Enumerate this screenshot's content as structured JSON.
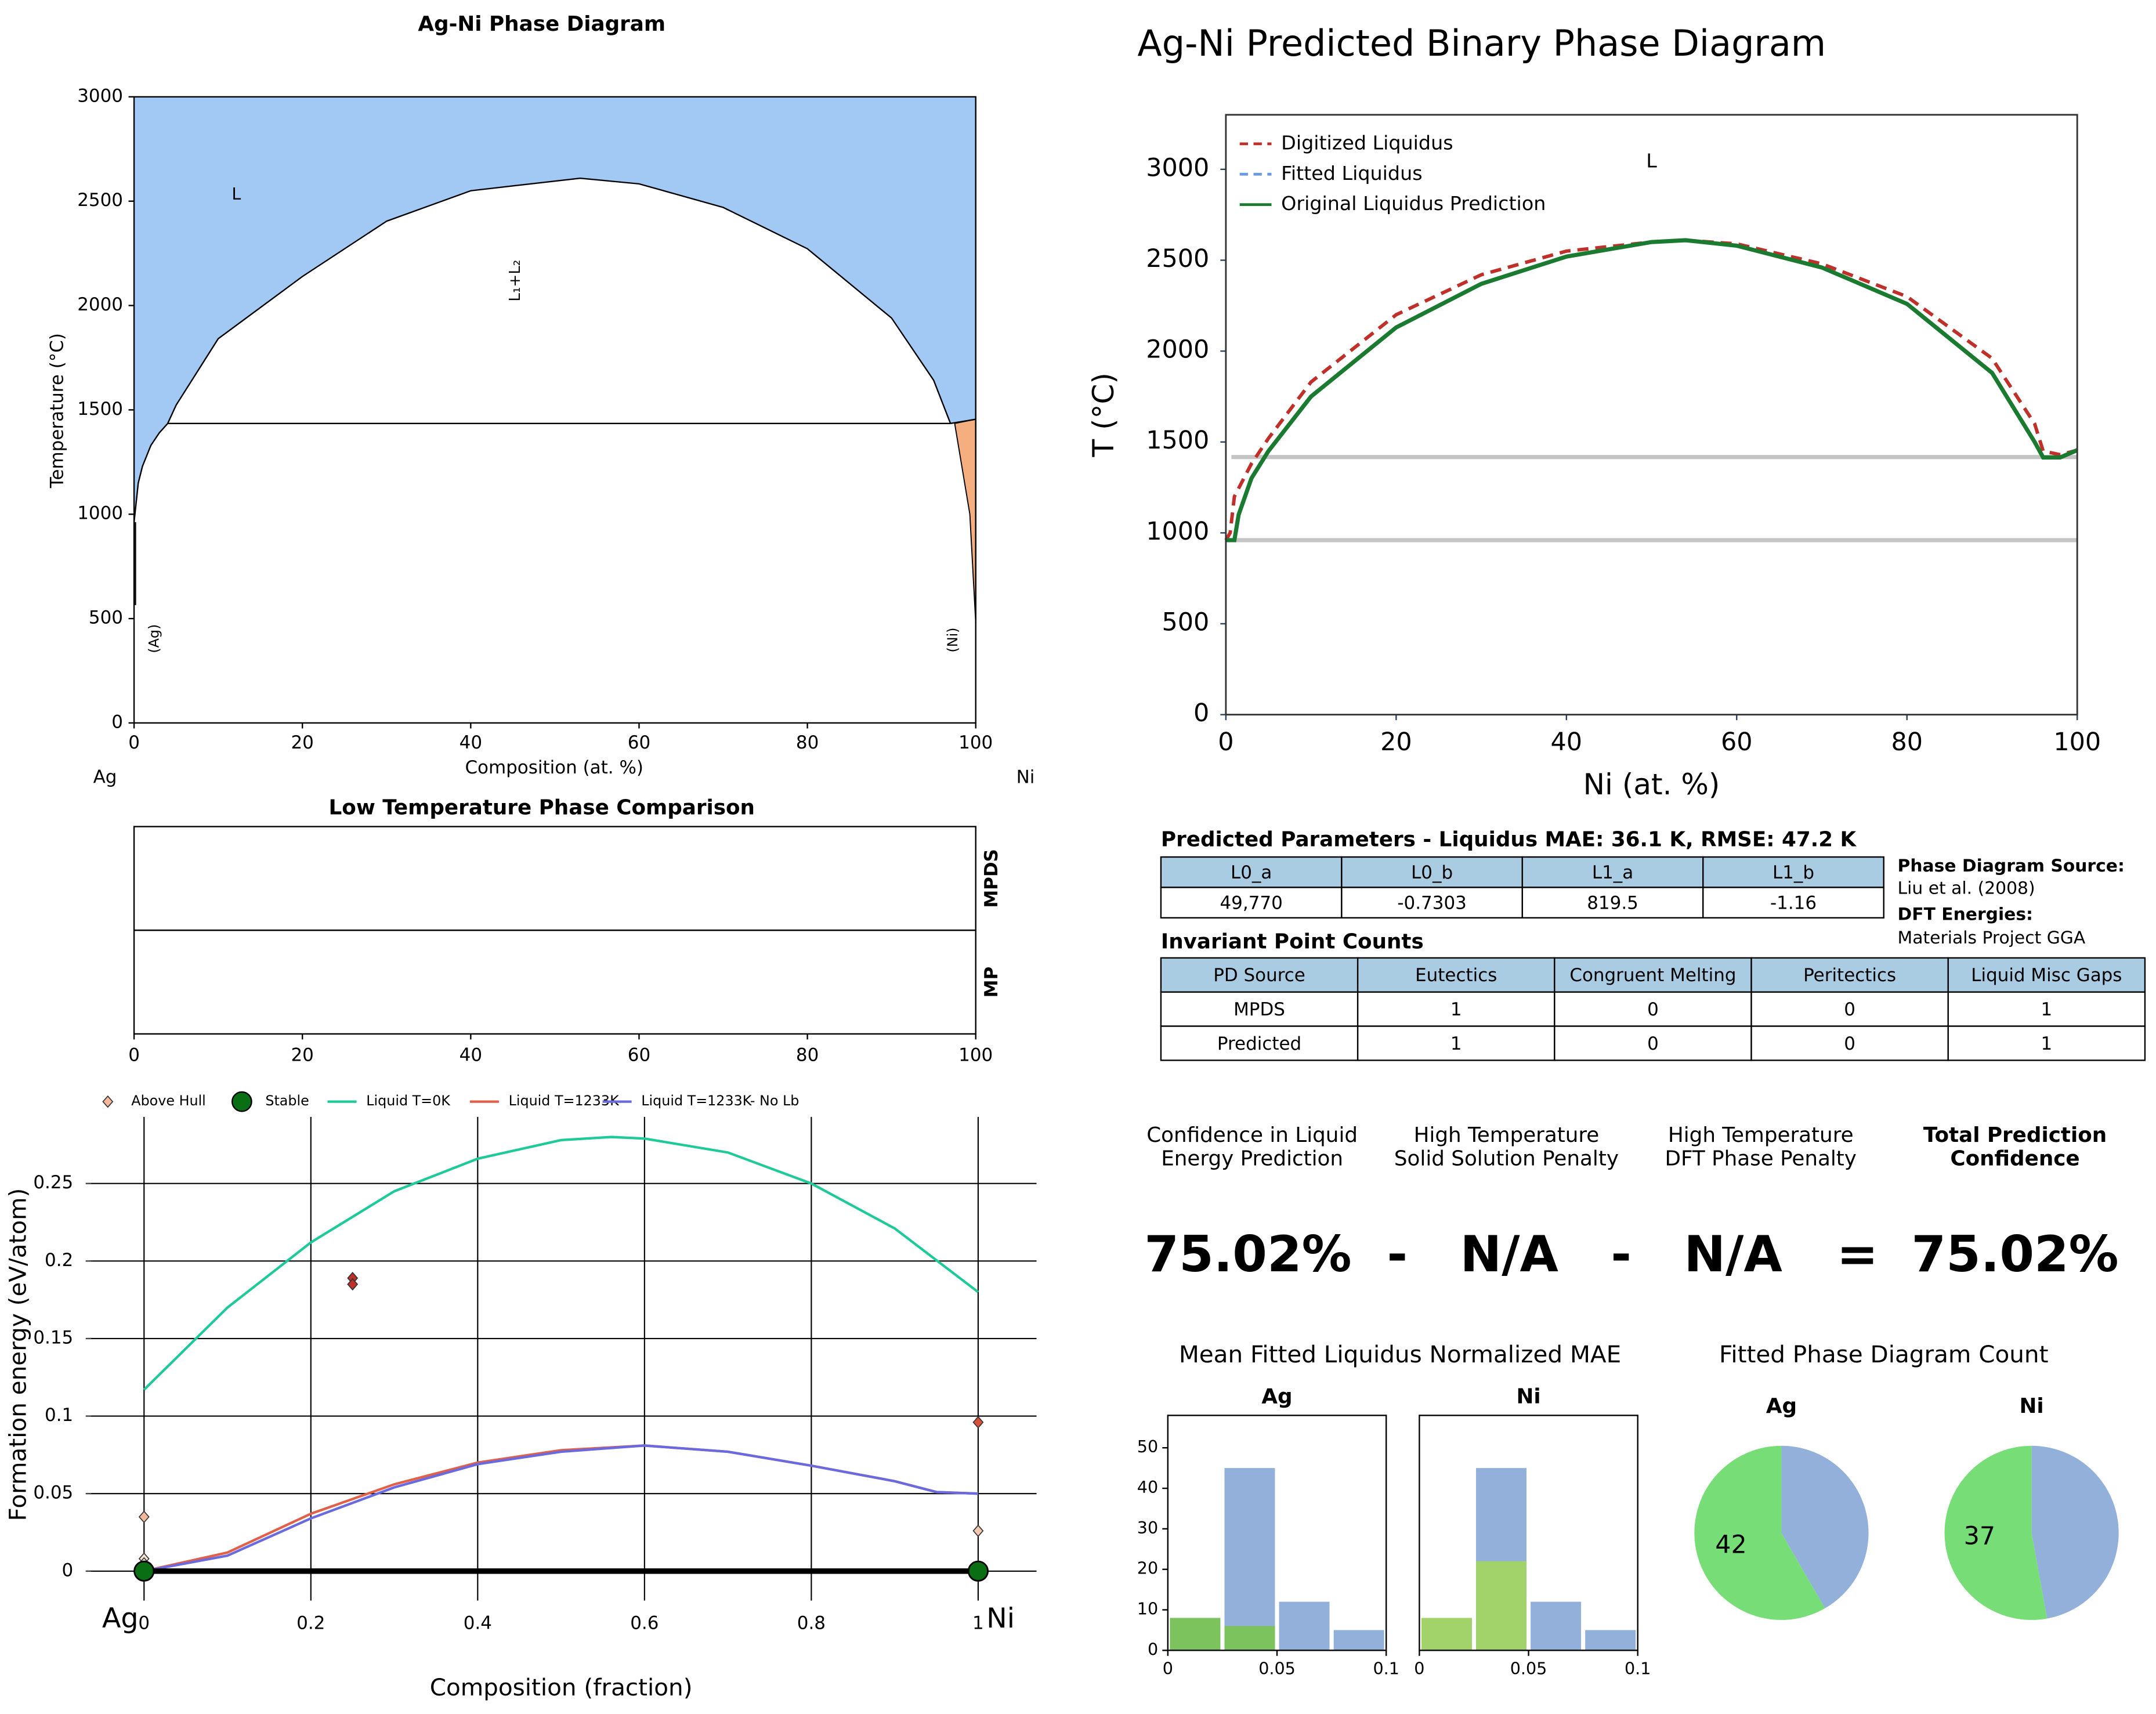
{
  "chart_data": [
    {
      "type": "phase",
      "title": "Ag-Ni Phase Diagram",
      "xlabel": "Composition (at. %)",
      "ylabel": "Temperature (°C)",
      "xlim": [
        0,
        100
      ],
      "ylim": [
        0,
        3000
      ],
      "xticks": [
        0,
        20,
        40,
        60,
        80,
        100
      ],
      "yticks": [
        0,
        500,
        1000,
        1500,
        2000,
        2500,
        3000
      ],
      "end_labels": [
        "Ag",
        "Ni"
      ],
      "annotations": [
        "L",
        "L₁+L₂",
        "(Ag)",
        "(Ni)"
      ],
      "liquid_color": "#a1c9f4",
      "solid_color": "#f5ae80",
      "dome": {
        "x": [
          4,
          5,
          10,
          20,
          30,
          40,
          53,
          60,
          70,
          80,
          90,
          95,
          97
        ],
        "y": [
          1435,
          1523,
          1841,
          2139,
          2404,
          2550,
          2610,
          2583,
          2470,
          2272,
          1940,
          1642,
          1435
        ]
      },
      "ag_liquidus": {
        "x": [
          0,
          0.5,
          1,
          2,
          3,
          4
        ],
        "y": [
          962,
          1150,
          1230,
          1330,
          1390,
          1435
        ]
      },
      "ni_liquidus": {
        "x": [
          97,
          100
        ],
        "y": [
          1435,
          1455
        ]
      },
      "monotectic": {
        "x": [
          4,
          97
        ],
        "y": [
          1435,
          1435
        ]
      },
      "ni_solid": {
        "x": [
          97.5,
          100,
          100,
          99.3
        ],
        "y": [
          1435,
          1455,
          480,
          1000
        ]
      }
    },
    {
      "type": "bands",
      "title": "Low Temperature Phase Comparison",
      "xlim": [
        0,
        100
      ],
      "xticks": [
        0,
        20,
        40,
        60,
        80,
        100
      ],
      "rows": [
        "MPDS",
        "MP"
      ]
    },
    {
      "type": "hull",
      "xlabel": "Composition (fraction)",
      "ylabel": "Formation energy (eV/atom)",
      "xlim": [
        -0.065,
        1.07
      ],
      "ylim": [
        -0.019,
        0.293
      ],
      "xticks": [
        0,
        0.2,
        0.4,
        0.6,
        0.8,
        1
      ],
      "yticks": [
        0,
        0.05,
        0.1,
        0.15,
        0.2,
        0.25
      ],
      "grid": true,
      "end_labels": [
        "Ag",
        "Ni"
      ],
      "series": [
        {
          "name": "Above Hull",
          "style": "diamond",
          "color": "#f4b89a",
          "x": [
            0,
            0,
            0,
            0.25,
            0.25,
            1,
            1
          ],
          "y": [
            0.035,
            0.008,
            0.005,
            0.189,
            0.185,
            0.096,
            0.026
          ],
          "colors": [
            "#f4b89a",
            "#f8e0d0",
            "#f8f0ea",
            "#c0302a",
            "#c0302a",
            "#d9503a",
            "#f4c8b0"
          ]
        },
        {
          "name": "Stable",
          "style": "circle",
          "color": "#0a6e14",
          "x": [
            0,
            1
          ],
          "y": [
            0,
            0
          ]
        },
        {
          "name": "Liquid T=0K",
          "style": "line",
          "color": "#1ec99a",
          "x": [
            0,
            0.1,
            0.2,
            0.3,
            0.4,
            0.5,
            0.56,
            0.6,
            0.7,
            0.8,
            0.9,
            1
          ],
          "y": [
            0.117,
            0.17,
            0.212,
            0.245,
            0.266,
            0.278,
            0.28,
            0.279,
            0.27,
            0.25,
            0.221,
            0.18
          ]
        },
        {
          "name": "Liquid T=1233K",
          "style": "line",
          "color": "#e0604a",
          "x": [
            0,
            0.1,
            0.2,
            0.3,
            0.4,
            0.5,
            0.6,
            0.7,
            0.8,
            0.9,
            0.95,
            1
          ],
          "y": [
            0,
            0.012,
            0.037,
            0.056,
            0.07,
            0.078,
            0.081,
            0.077,
            0.068,
            0.058,
            0.051,
            0.05
          ]
        },
        {
          "name": "Liquid T=1233K- No Lb",
          "style": "line",
          "color": "#6a6ae0",
          "x": [
            0,
            0.1,
            0.2,
            0.3,
            0.4,
            0.5,
            0.6,
            0.7,
            0.8,
            0.9,
            0.95,
            1
          ],
          "y": [
            0,
            0.01,
            0.034,
            0.054,
            0.069,
            0.077,
            0.081,
            0.077,
            0.068,
            0.058,
            0.051,
            0.05
          ]
        }
      ],
      "hull": {
        "x": [
          0,
          1
        ],
        "y": [
          0,
          0
        ]
      }
    },
    {
      "type": "predicted",
      "title": "Ag-Ni Predicted Binary Phase Diagram",
      "xlabel": "Ni (at. %)",
      "ylabel": "T (°C)",
      "xlim": [
        0,
        100
      ],
      "ylim": [
        0,
        3300
      ],
      "xticks": [
        0,
        20,
        40,
        60,
        80,
        100
      ],
      "yticks": [
        0,
        500,
        1000,
        1500,
        2000,
        2500,
        3000
      ],
      "annotations": [
        "L"
      ],
      "reference_lines": [
        1417,
        960
      ],
      "reference_color": "#c4c4c4",
      "series": [
        {
          "name": "Digitized Liquidus",
          "color": "#c0302a",
          "dash": true,
          "x": [
            0,
            0.5,
            1,
            3,
            5,
            10,
            20,
            30,
            40,
            50,
            54,
            60,
            70,
            80,
            90,
            95,
            96,
            98,
            100
          ],
          "y": [
            960,
            1000,
            1200,
            1380,
            1520,
            1830,
            2200,
            2420,
            2550,
            2600,
            2610,
            2590,
            2480,
            2300,
            1960,
            1600,
            1450,
            1430,
            1455
          ]
        },
        {
          "name": "Fitted Liquidus",
          "color": "#6a9ae0",
          "dash": true,
          "x": [
            0,
            1,
            1.5,
            3,
            5,
            10,
            20,
            30,
            40,
            50,
            54,
            60,
            70,
            80,
            90,
            95,
            96,
            98,
            100
          ],
          "y": [
            960,
            960,
            1100,
            1300,
            1450,
            1750,
            2130,
            2370,
            2520,
            2600,
            2610,
            2580,
            2460,
            2260,
            1880,
            1500,
            1415,
            1415,
            1455
          ]
        },
        {
          "name": "Original Liquidus Prediction",
          "color": "#1a7a30",
          "dash": false,
          "x": [
            0,
            1,
            1.5,
            3,
            5,
            10,
            20,
            30,
            40,
            50,
            54,
            60,
            70,
            80,
            90,
            95,
            96,
            98,
            100
          ],
          "y": [
            960,
            960,
            1100,
            1300,
            1450,
            1750,
            2130,
            2370,
            2520,
            2600,
            2610,
            2580,
            2460,
            2260,
            1880,
            1500,
            1415,
            1415,
            1455
          ]
        }
      ]
    },
    {
      "type": "histogram",
      "title": "Ag",
      "bins": [
        0,
        0.025,
        0.05,
        0.075,
        0.1
      ],
      "xlim": [
        0,
        0.1
      ],
      "ylim": [
        0,
        58
      ],
      "xticks": [
        0,
        0.05,
        0.1
      ],
      "yticks": [
        0,
        10,
        20,
        30,
        40,
        50
      ],
      "series": [
        {
          "color": "#92b0da",
          "values": [
            8,
            45,
            12,
            5
          ]
        },
        {
          "color": "#7cc35e",
          "values": [
            8,
            6,
            0,
            0
          ]
        }
      ]
    },
    {
      "type": "histogram",
      "title": "Ni",
      "bins": [
        0,
        0.025,
        0.05,
        0.075,
        0.1
      ],
      "xlim": [
        0,
        0.1
      ],
      "ylim": [
        0,
        58
      ],
      "xticks": [
        0,
        0.05,
        0.1
      ],
      "series": [
        {
          "color": "#92b0da",
          "values": [
            8,
            45,
            12,
            5
          ]
        },
        {
          "color": "#a1d36a",
          "values": [
            8,
            22,
            0,
            0
          ]
        }
      ]
    },
    {
      "type": "pie",
      "title": "Ag",
      "values": [
        42,
        30
      ],
      "colors": [
        "#77dd77",
        "#92b0da"
      ]
    },
    {
      "type": "pie",
      "title": "Ni",
      "values": [
        37,
        33
      ],
      "colors": [
        "#77dd77",
        "#92b0da"
      ]
    }
  ],
  "parameters": {
    "title": "Predicted Parameters - Liquidus MAE: 36.1 K, RMSE: 47.2 K",
    "header": [
      "L0_a",
      "L0_b",
      "L1_a",
      "L1_b"
    ],
    "rows": [
      [
        "49,770",
        "-0.7303",
        "819.5",
        "-1.16"
      ]
    ]
  },
  "sources": {
    "pd_label": "Phase Diagram Source:",
    "pd": "Liu et al. (2008)",
    "dft_label": "DFT Energies:",
    "dft": "Materials Project GGA"
  },
  "invariants": {
    "title": "Invariant Point Counts",
    "header": [
      "PD Source",
      "Eutectics",
      "Congruent Melting",
      "Peritectics",
      "Liquid Misc Gaps"
    ],
    "rows": [
      [
        "MPDS",
        1,
        0,
        0,
        1
      ],
      [
        "Predicted",
        1,
        0,
        0,
        1
      ]
    ]
  },
  "confidence": {
    "headers": [
      [
        "Confidence in Liquid",
        "Energy Prediction"
      ],
      [
        "High Temperature",
        "Solid Solution Penalty"
      ],
      [
        "High Temperature",
        "DFT Phase Penalty"
      ],
      [
        "Total Prediction",
        "Confidence"
      ]
    ],
    "values": [
      "75.02%",
      "-",
      "N/A",
      "-",
      "N/A",
      "=",
      "75.02%"
    ]
  },
  "panels": {
    "mae_title": "Mean Fitted Liquidus Normalized MAE",
    "count_title": "Fitted Phase Diagram Count"
  }
}
